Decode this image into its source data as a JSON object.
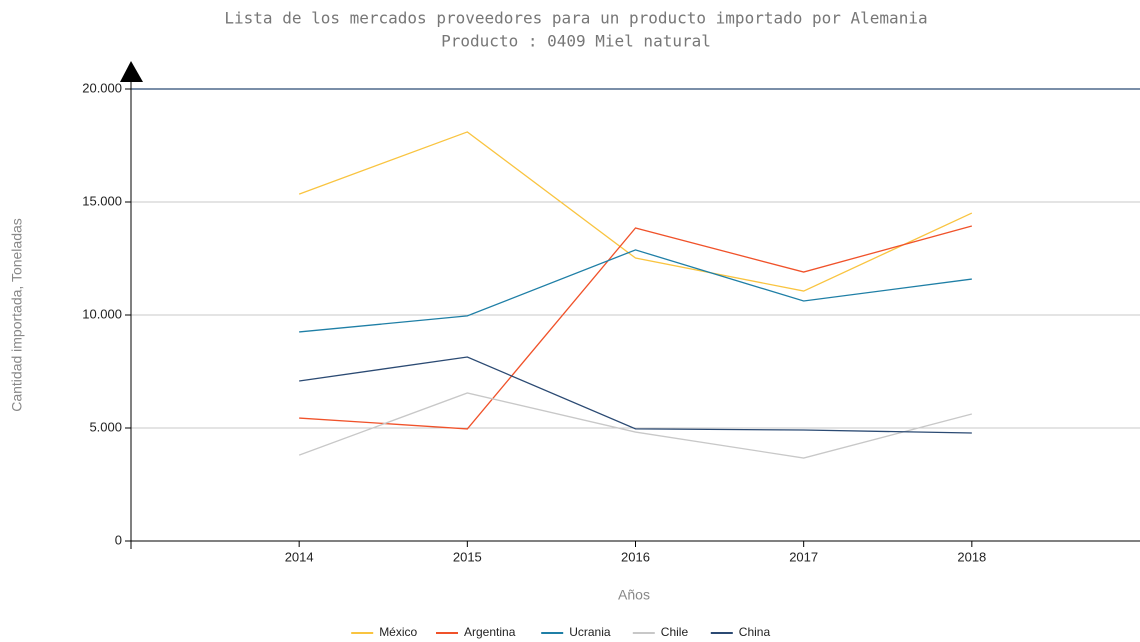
{
  "chart_data": {
    "type": "line",
    "title": "Lista de los mercados proveedores para un producto importado por Alemania",
    "subtitle": "Producto : 0409 Miel natural",
    "x_label": "Años",
    "y_label": "Cantidad importada, Toneladas",
    "x": [
      2014,
      2015,
      2016,
      2017,
      2018
    ],
    "xlim": [
      2013,
      2019
    ],
    "xticks": [
      2014,
      2015,
      2016,
      2017,
      2018
    ],
    "ylim": [
      0,
      20000
    ],
    "yticks": [
      0,
      {
        "value": 5000,
        "label": "5.000"
      },
      {
        "value": 10000,
        "label": "10.000"
      },
      {
        "value": 15000,
        "label": "15.000"
      },
      {
        "value": 20000,
        "label": "20.000"
      }
    ],
    "grid": true,
    "legend": "bottom",
    "series": [
      {
        "name": "México",
        "color": "#f9c440",
        "values": [
          15350,
          18100,
          12520,
          11060,
          14510
        ]
      },
      {
        "name": "Argentina",
        "color": "#f0522a",
        "values": [
          5440,
          4960,
          13850,
          11900,
          13940
        ]
      },
      {
        "name": "Ucrania",
        "color": "#1f7fa6",
        "values": [
          9250,
          9960,
          12880,
          10620,
          11590
        ]
      },
      {
        "name": "Chile",
        "color": "#c8c8c8",
        "values": [
          3800,
          6550,
          4820,
          3670,
          5620
        ]
      },
      {
        "name": "China",
        "color": "#2b4a73",
        "values": [
          7080,
          8140,
          4960,
          4910,
          4780
        ]
      }
    ]
  }
}
